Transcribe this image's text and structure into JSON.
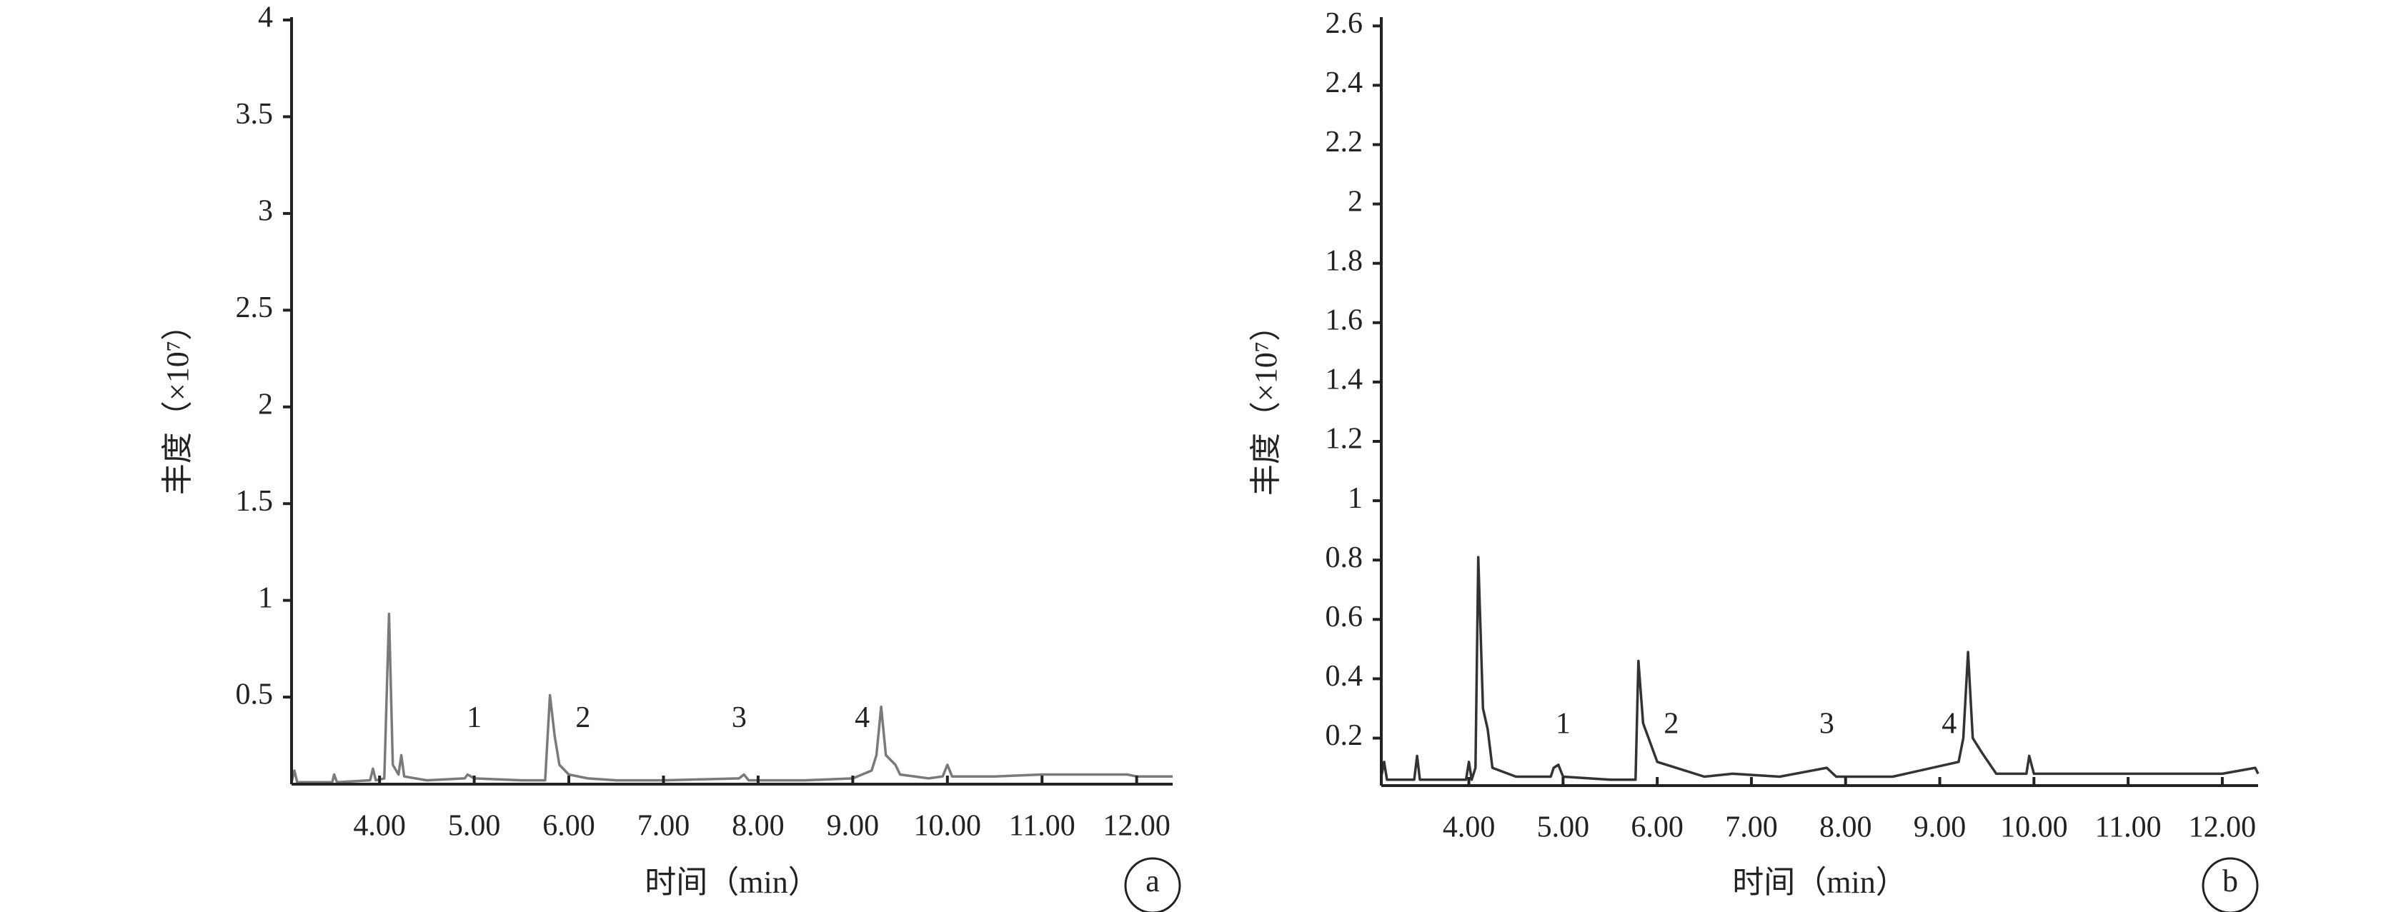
{
  "chart_data": [
    {
      "type": "line",
      "panel": "a",
      "x_label": "时间（min）",
      "y_label": "丰度（×10⁷）",
      "color": "#7a7a7a",
      "xlim": [
        3.07,
        12.38
      ],
      "xticks": [
        {
          "value": 4,
          "label": "4.00"
        },
        {
          "value": 5,
          "label": "5.00"
        },
        {
          "value": 6,
          "label": "6.00"
        },
        {
          "value": 7,
          "label": "7.00"
        },
        {
          "value": 8,
          "label": "8.00"
        },
        {
          "value": 9,
          "label": "9.00"
        },
        {
          "value": 10,
          "label": "10.00"
        },
        {
          "value": 11,
          "label": "11.00"
        },
        {
          "value": 12,
          "label": "12.00"
        }
      ],
      "ylim": [
        0.05,
        4.0
      ],
      "yticks": [
        0.5,
        1.0,
        1.5,
        2.0,
        2.5,
        3.0,
        3.5,
        4.0
      ],
      "x": [
        3.07,
        3.1,
        3.13,
        3.5,
        3.52,
        3.55,
        3.9,
        3.93,
        3.96,
        4.05,
        4.1,
        4.14,
        4.2,
        4.23,
        4.26,
        4.5,
        4.9,
        4.93,
        5.0,
        5.5,
        5.75,
        5.8,
        5.85,
        5.9,
        6.0,
        6.2,
        6.5,
        7.0,
        7.8,
        7.85,
        7.9,
        8.5,
        9.0,
        9.2,
        9.25,
        9.3,
        9.35,
        9.45,
        9.5,
        9.8,
        9.95,
        10.0,
        10.05,
        10.5,
        11.0,
        11.5,
        11.9,
        12.0,
        12.38
      ],
      "values": [
        0.06,
        0.12,
        0.06,
        0.06,
        0.1,
        0.06,
        0.07,
        0.13,
        0.07,
        0.08,
        0.93,
        0.15,
        0.1,
        0.2,
        0.09,
        0.07,
        0.08,
        0.1,
        0.08,
        0.07,
        0.07,
        0.51,
        0.3,
        0.15,
        0.1,
        0.08,
        0.07,
        0.07,
        0.08,
        0.1,
        0.07,
        0.07,
        0.08,
        0.12,
        0.2,
        0.45,
        0.2,
        0.15,
        0.1,
        0.08,
        0.09,
        0.15,
        0.09,
        0.09,
        0.1,
        0.1,
        0.1,
        0.09,
        0.09
      ],
      "annotations": [
        {
          "text": "1",
          "x": 5.0,
          "y": 0.38
        },
        {
          "text": "2",
          "x": 6.15,
          "y": 0.38
        },
        {
          "text": "3",
          "x": 7.8,
          "y": 0.38
        },
        {
          "text": "4",
          "x": 9.1,
          "y": 0.38
        }
      ]
    },
    {
      "type": "line",
      "panel": "b",
      "x_label": "时间（min）",
      "y_label": "丰度（×10⁷）",
      "color": "#333333",
      "xlim": [
        3.07,
        12.38
      ],
      "xticks": [
        {
          "value": 4,
          "label": "4.00"
        },
        {
          "value": 5,
          "label": "5.00"
        },
        {
          "value": 6,
          "label": "6.00"
        },
        {
          "value": 7,
          "label": "7.00"
        },
        {
          "value": 8,
          "label": "8.00"
        },
        {
          "value": 9,
          "label": "9.00"
        },
        {
          "value": 10,
          "label": "10.00"
        },
        {
          "value": 11,
          "label": "11.00"
        },
        {
          "value": 12,
          "label": "12.00"
        }
      ],
      "ylim": [
        0.04,
        2.62
      ],
      "yticks": [
        0.2,
        0.4,
        0.6,
        0.8,
        1.0,
        1.2,
        1.4,
        1.6,
        1.8,
        2.0,
        2.2,
        2.4,
        2.6
      ],
      "x": [
        3.07,
        3.1,
        3.13,
        3.42,
        3.45,
        3.48,
        3.97,
        4.0,
        4.03,
        4.07,
        4.1,
        4.15,
        4.2,
        4.25,
        4.5,
        4.87,
        4.9,
        4.95,
        5.0,
        5.5,
        5.77,
        5.8,
        5.85,
        6.0,
        6.5,
        6.8,
        7.3,
        7.8,
        7.9,
        8.5,
        9.2,
        9.25,
        9.3,
        9.35,
        9.45,
        9.6,
        9.92,
        9.95,
        10.0,
        11.0,
        12.0,
        12.35,
        12.38
      ],
      "values": [
        0.07,
        0.12,
        0.06,
        0.06,
        0.14,
        0.06,
        0.06,
        0.12,
        0.06,
        0.1,
        0.81,
        0.3,
        0.23,
        0.1,
        0.07,
        0.07,
        0.1,
        0.11,
        0.07,
        0.06,
        0.06,
        0.46,
        0.25,
        0.12,
        0.07,
        0.08,
        0.07,
        0.1,
        0.07,
        0.07,
        0.12,
        0.2,
        0.49,
        0.2,
        0.15,
        0.08,
        0.08,
        0.14,
        0.08,
        0.08,
        0.08,
        0.1,
        0.08
      ],
      "annotations": [
        {
          "text": "1",
          "x": 5.0,
          "y": 0.24
        },
        {
          "text": "2",
          "x": 6.15,
          "y": 0.24
        },
        {
          "text": "3",
          "x": 7.8,
          "y": 0.24
        },
        {
          "text": "4",
          "x": 9.1,
          "y": 0.24
        }
      ]
    }
  ]
}
